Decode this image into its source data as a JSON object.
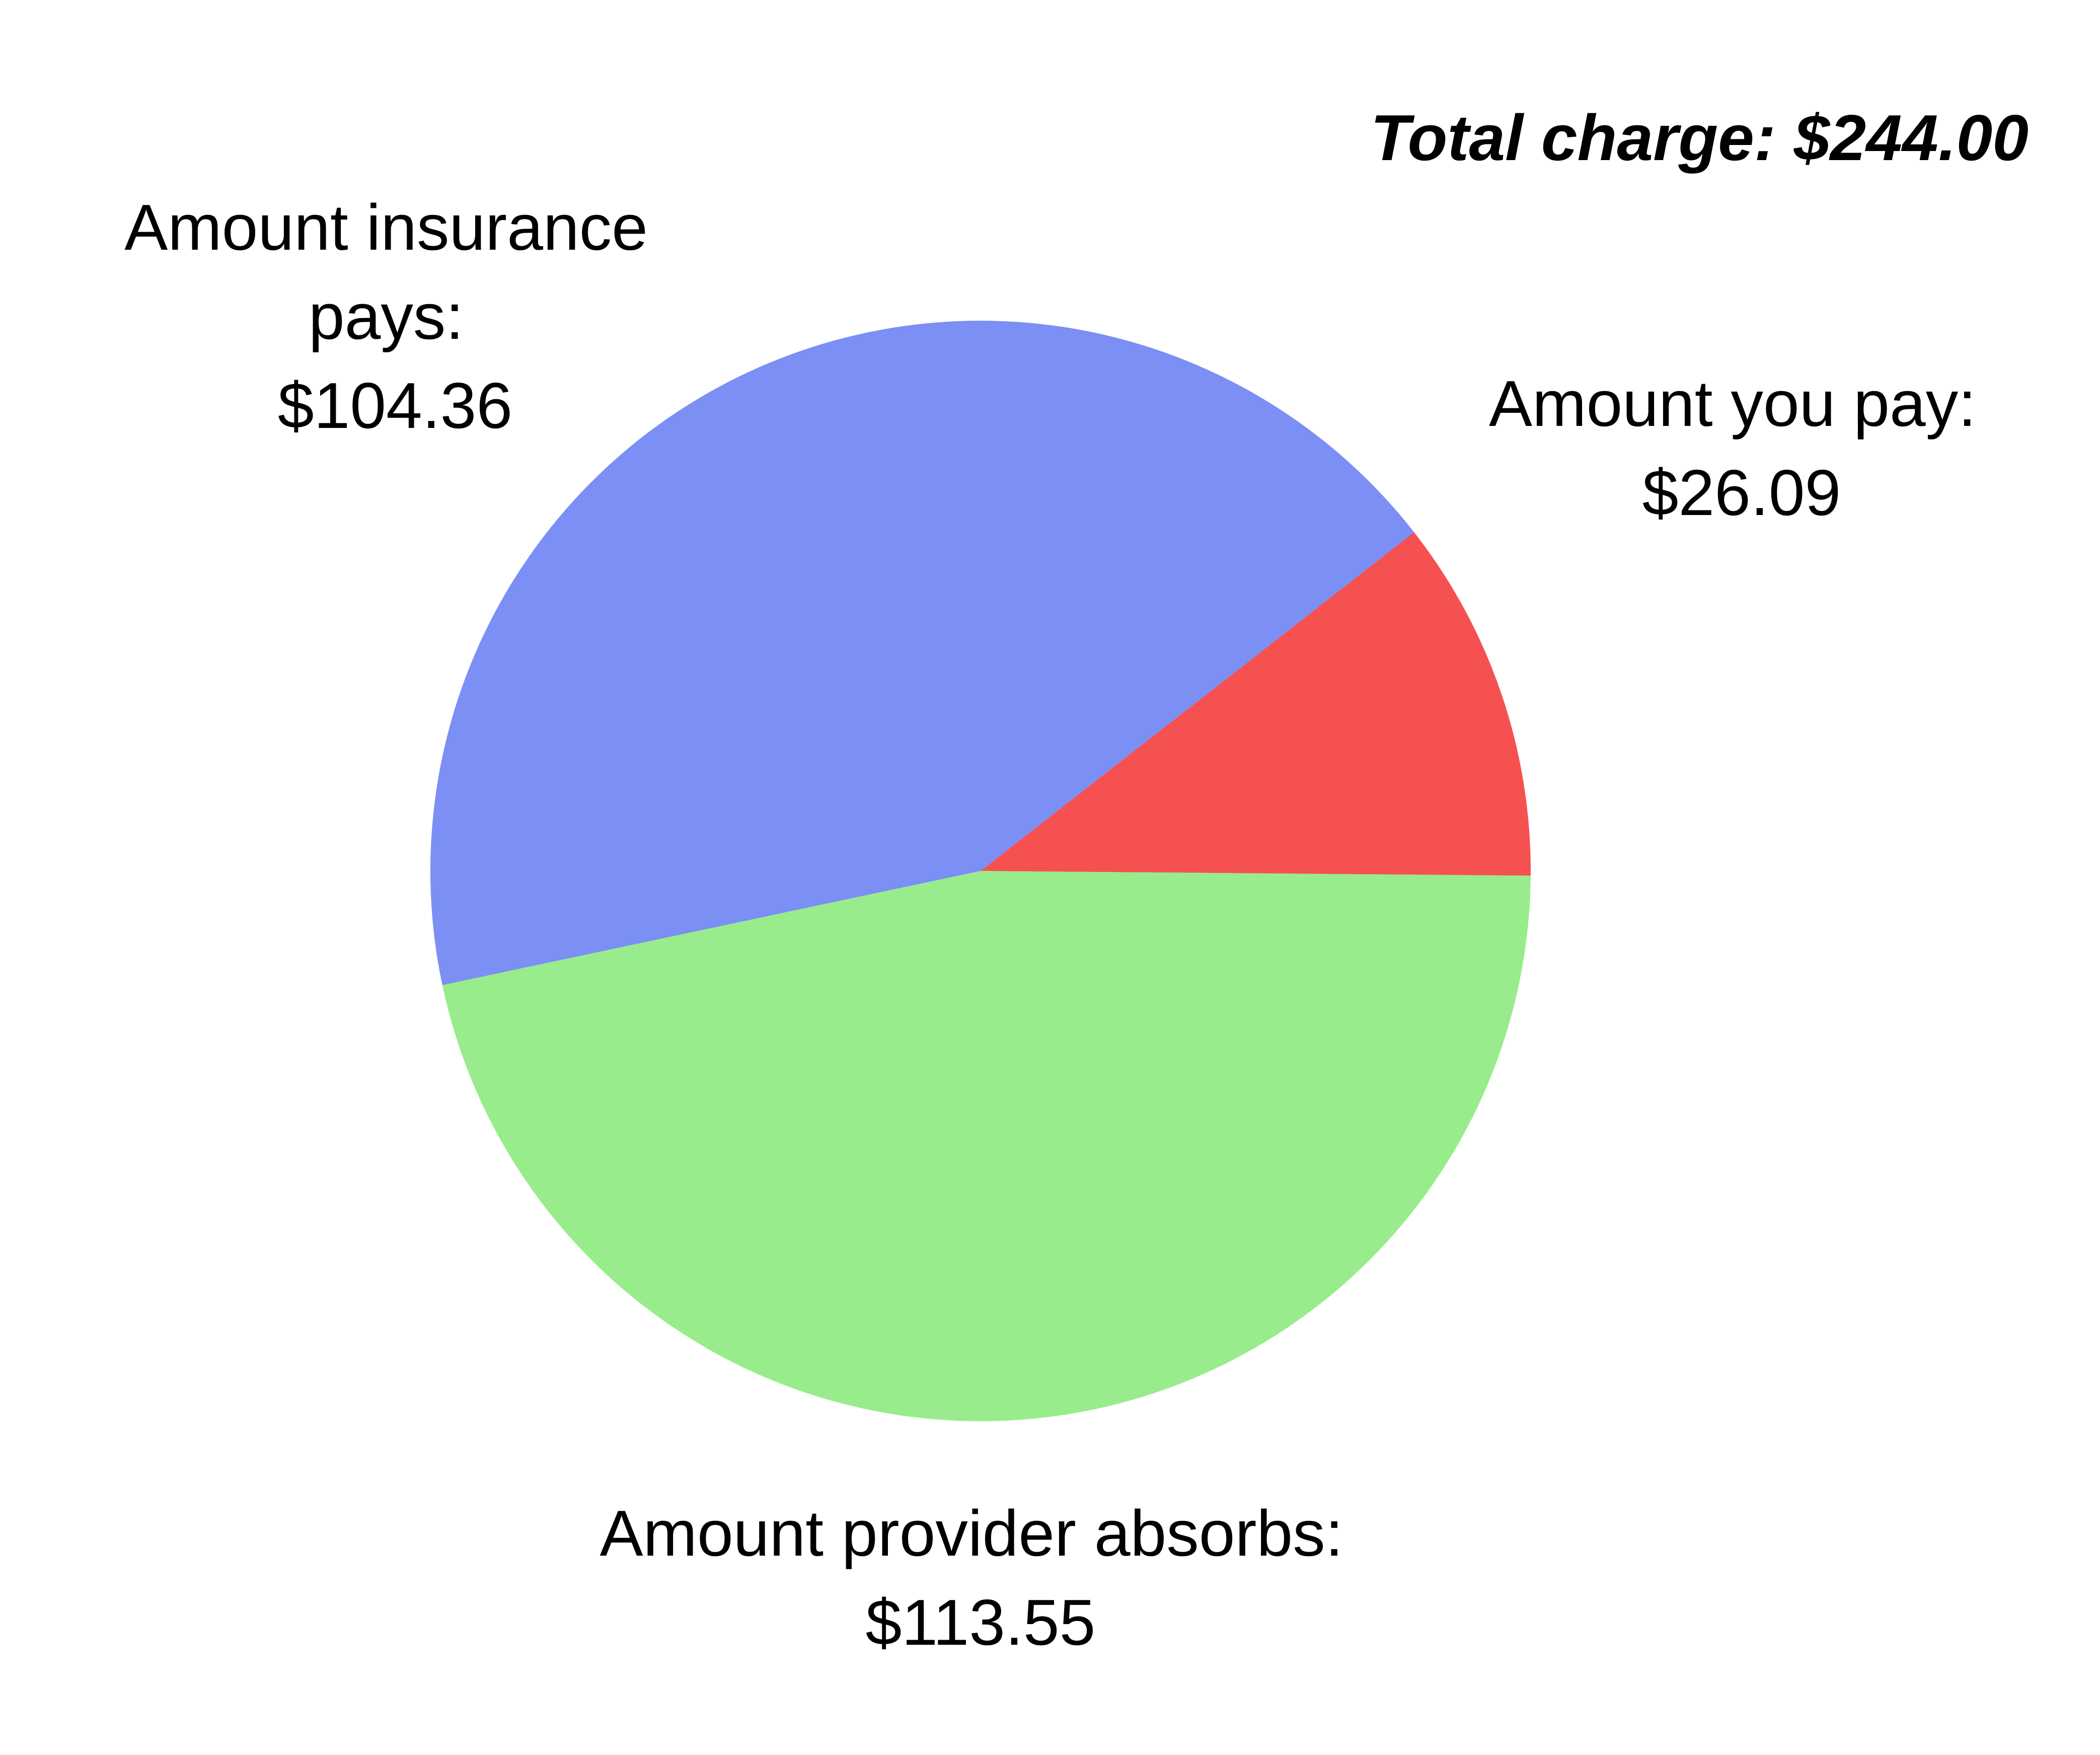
{
  "chart_data": {
    "type": "pie",
    "title": "Total charge: $244.00",
    "start_angle_deg": 38,
    "direction": "clockwise",
    "slices": [
      {
        "label_lines": [
          "Amount you pay:",
          "$26.09"
        ],
        "value": 26.09,
        "color": "#f55151"
      },
      {
        "label_lines": [
          "Amount provider absorbs:",
          "$113.55"
        ],
        "value": 113.55,
        "color": "#98ec8b"
      },
      {
        "label_lines": [
          "Amount insurance",
          "pays:",
          "$104.36"
        ],
        "value": 104.36,
        "color": "#7b8ff5"
      }
    ]
  }
}
